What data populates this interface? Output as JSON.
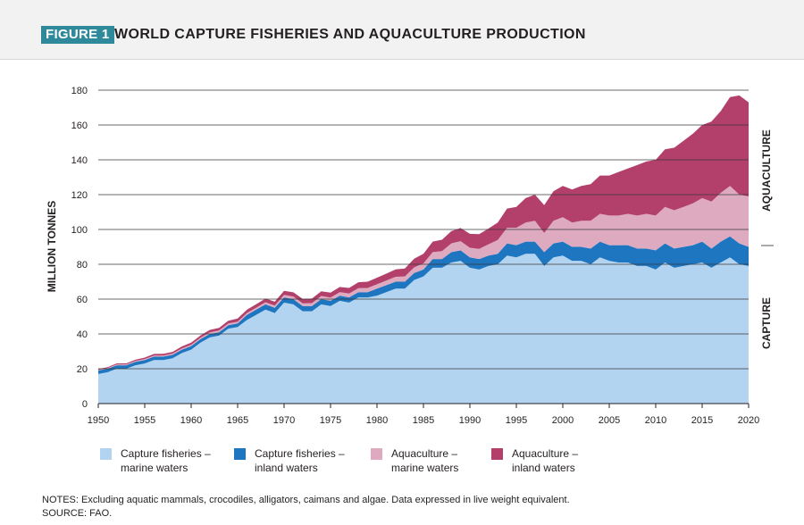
{
  "header": {
    "badge": "FIGURE 1",
    "title": "WORLD CAPTURE FISHERIES AND AQUACULTURE PRODUCTION"
  },
  "colors": {
    "capture_marine": "#b3d4f1",
    "capture_inland": "#1e75c0",
    "aquaculture_marine": "#deaabf",
    "aquaculture_inland": "#b33f6b",
    "grid": "#3a3a3a"
  },
  "legend": [
    {
      "line1": "Capture fisheries –",
      "line2": "marine waters"
    },
    {
      "line1": "Capture fisheries –",
      "line2": "inland waters"
    },
    {
      "line1": "Aquaculture –",
      "line2": "marine waters"
    },
    {
      "line1": "Aquaculture –",
      "line2": "inland waters"
    }
  ],
  "notes": {
    "line1": "NOTES: Excluding aquatic mammals, crocodiles, alligators, caimans and algae. Data expressed in live weight equivalent.",
    "line2": "SOURCE: FAO."
  },
  "chart_data": {
    "type": "area",
    "stacked": true,
    "ylabel": "MILLION TONNES",
    "xlabel": "",
    "ylim": [
      0,
      180
    ],
    "xlim": [
      1950,
      2020
    ],
    "yticks": [
      "0",
      "20",
      "40",
      "60",
      "80",
      "100",
      "120",
      "140",
      "160",
      "180"
    ],
    "xticks": [
      "1950",
      "1955",
      "1960",
      "1965",
      "1970",
      "1975",
      "1980",
      "1985",
      "1990",
      "1995",
      "2000",
      "2005",
      "2010",
      "2015",
      "2020"
    ],
    "side_labels": {
      "upper": "AQUACULTURE",
      "lower": "CAPTURE"
    },
    "grid": true,
    "x": [
      1950,
      1951,
      1952,
      1953,
      1954,
      1955,
      1956,
      1957,
      1958,
      1959,
      1960,
      1961,
      1962,
      1963,
      1964,
      1965,
      1966,
      1967,
      1968,
      1969,
      1970,
      1971,
      1972,
      1973,
      1974,
      1975,
      1976,
      1977,
      1978,
      1979,
      1980,
      1981,
      1982,
      1983,
      1984,
      1985,
      1986,
      1987,
      1988,
      1989,
      1990,
      1991,
      1992,
      1993,
      1994,
      1995,
      1996,
      1997,
      1998,
      1999,
      2000,
      2001,
      2002,
      2003,
      2004,
      2005,
      2006,
      2007,
      2008,
      2009,
      2010,
      2011,
      2012,
      2013,
      2014,
      2015,
      2016,
      2017,
      2018,
      2019,
      2020
    ],
    "series": [
      {
        "name": "Capture fisheries – marine waters",
        "values": [
          17,
          18,
          20,
          20,
          22,
          23,
          25,
          25,
          26,
          29,
          31,
          35,
          38,
          39,
          43,
          44,
          48,
          51,
          54,
          52,
          58,
          57,
          53,
          53,
          57,
          56,
          59,
          58,
          61,
          61,
          62,
          64,
          66,
          66,
          71,
          73,
          78,
          78,
          81,
          82,
          78,
          77,
          79,
          80,
          85,
          84,
          86,
          86,
          79,
          84,
          85,
          82,
          82,
          80,
          84,
          82,
          81,
          81,
          79,
          79,
          77,
          81,
          78,
          79,
          80,
          81,
          78,
          81,
          84,
          80,
          79
        ]
      },
      {
        "name": "Capture fisheries – inland waters",
        "values": [
          2,
          2,
          2,
          2,
          2,
          2,
          2,
          2,
          2,
          2,
          2,
          2,
          2,
          2,
          2,
          2,
          3,
          3,
          3,
          3,
          3,
          3,
          3,
          3,
          3,
          3,
          3,
          3,
          3,
          3,
          4,
          4,
          4,
          4,
          4,
          4,
          5,
          5,
          6,
          6,
          6,
          6,
          6,
          6,
          7,
          7,
          7,
          7,
          8,
          8,
          8,
          8,
          8,
          9,
          9,
          9,
          10,
          10,
          10,
          10,
          11,
          11,
          11,
          11,
          11,
          12,
          11,
          12,
          12,
          12,
          11
        ]
      },
      {
        "name": "Aquaculture – marine waters",
        "values": [
          0.4,
          0.4,
          0.5,
          0.5,
          0.5,
          0.6,
          0.6,
          0.6,
          0.7,
          0.7,
          0.8,
          0.8,
          0.9,
          1,
          1,
          1,
          1,
          1.1,
          1.2,
          1.3,
          1.4,
          1.5,
          1.6,
          1.7,
          1.8,
          1.9,
          2,
          2.2,
          2.3,
          2.4,
          2.5,
          2.6,
          2.8,
          3,
          3.2,
          3.5,
          4,
          4.6,
          5,
          5.3,
          5.5,
          5.8,
          6.5,
          8,
          9,
          10,
          11,
          12,
          11,
          13,
          14,
          14,
          15,
          16,
          16,
          17,
          17,
          18,
          19,
          20,
          20,
          21,
          22,
          23,
          24,
          25,
          27,
          28,
          29,
          28,
          29
        ]
      },
      {
        "name": "Aquaculture – inland waters",
        "values": [
          0.5,
          0.5,
          0.6,
          0.6,
          0.7,
          0.8,
          0.9,
          1,
          1,
          1.1,
          1.2,
          1.3,
          1.4,
          1.5,
          1.6,
          1.8,
          1.9,
          2,
          2.1,
          2.2,
          2.3,
          2.4,
          2.5,
          2.6,
          2.7,
          2.8,
          3,
          3.2,
          3.4,
          3.6,
          3.8,
          4,
          4.3,
          4.6,
          5,
          5.5,
          6,
          6.5,
          7,
          7.5,
          8,
          8.5,
          9,
          10,
          11,
          12,
          14,
          15,
          16,
          17,
          18,
          19,
          20,
          21,
          22,
          23,
          25,
          26,
          29,
          30,
          32,
          33,
          36,
          38,
          40,
          42,
          46,
          47,
          51,
          57,
          54
        ]
      }
    ]
  }
}
